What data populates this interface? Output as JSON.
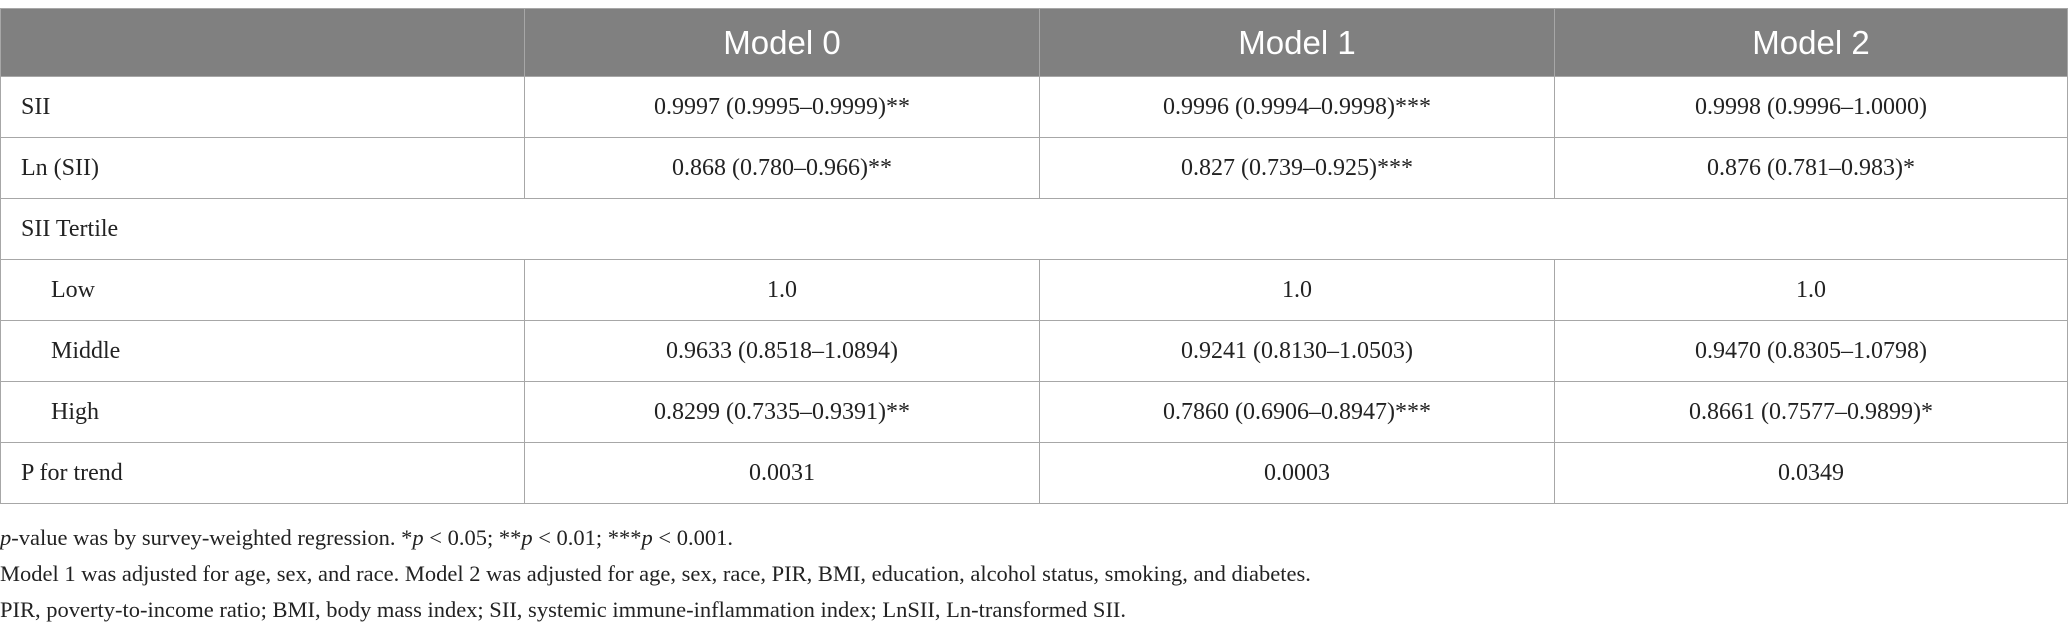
{
  "header": [
    "",
    "Model 0",
    "Model 1",
    "Model 2"
  ],
  "rows": [
    {
      "label": "SII",
      "cells": [
        "0.9997 (0.9995–0.9999)**",
        "0.9996 (0.9994–0.9998)***",
        "0.9998 (0.9996–1.0000)"
      ]
    },
    {
      "label": "Ln (SII)",
      "cells": [
        "0.868 (0.780–0.966)**",
        "0.827 (0.739–0.925)***",
        "0.876 (0.781–0.983)*"
      ]
    },
    {
      "label": "SII Tertile"
    },
    {
      "label": "Low",
      "cells": [
        "1.0",
        "1.0",
        "1.0"
      ]
    },
    {
      "label": "Middle",
      "cells": [
        "0.9633 (0.8518–1.0894)",
        "0.9241 (0.8130–1.0503)",
        "0.9470 (0.8305–1.0798)"
      ]
    },
    {
      "label": "High",
      "cells": [
        "0.8299 (0.7335–0.9391)**",
        "0.7860 (0.6906–0.8947)***",
        "0.8661 (0.7577–0.9899)*"
      ]
    },
    {
      "label": "P for trend",
      "cells": [
        "0.0031",
        "0.0003",
        "0.0349"
      ]
    }
  ],
  "notes": {
    "note1": {
      "p1": "p",
      "t1": "-value was by survey-weighted regression. *",
      "p2": "p",
      "t2": " < 0.05; **",
      "p3": "p",
      "t3": " < 0.01; ***",
      "p4": "p",
      "t4": " < 0.001."
    },
    "note2": "Model 1 was adjusted for age, sex, and race. Model 2 was adjusted for age, sex, race, PIR, BMI, education, alcohol status, smoking, and diabetes.",
    "note3": "PIR, poverty-to-income ratio; BMI, body mass index; SII, systemic immune-inflammation index; LnSII, Ln-transformed SII."
  }
}
